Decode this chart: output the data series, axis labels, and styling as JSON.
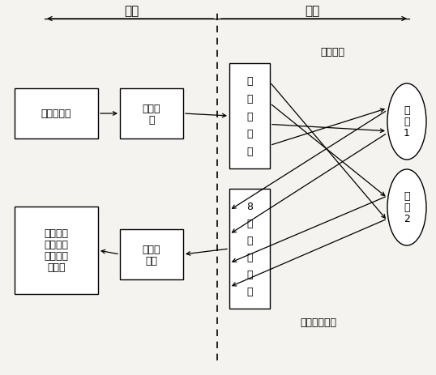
{
  "bg_color": "#f5f3ef",
  "box_color": "#ffffff",
  "box_edge_color": "#000000",
  "line_color": "#000000",
  "title_ganr": "干端",
  "title_shir": "湿端",
  "box_signal_tx": "信号发射机",
  "box_tx_amp_line1": "发射功",
  "box_tx_amp_line2": "放",
  "box_filter_chars": [
    "发",
    "射",
    "滤",
    "波",
    "器"
  ],
  "box_rx_array_chars": [
    "8",
    "元",
    "接",
    "收",
    "天",
    "线"
  ],
  "box_signal_rx_line1": "信号接",
  "box_signal_rx_line2": "收机",
  "box_processor_lines": [
    "信号处理",
    "机（信号",
    "波达方向",
    "估计）"
  ],
  "label_tx_signal": "发射信号",
  "label_rx_signal": "发射信号回波",
  "target1_chars": [
    "目",
    "标",
    "1"
  ],
  "target2_chars": [
    "目",
    "标",
    "2"
  ],
  "figsize": [
    5.38,
    4.64
  ],
  "dpi": 100
}
